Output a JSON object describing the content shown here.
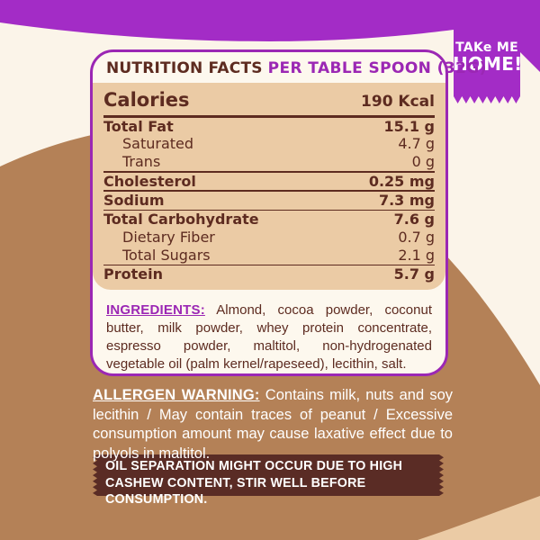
{
  "colors": {
    "background": "#FBF4E9",
    "purple": "#9B27B4",
    "purple-bright": "#A32CC6",
    "brown": "#B48157",
    "tan": "#EBCBA5",
    "dark-brown-text": "#5D2B20",
    "banner-brown": "#5A2C25",
    "panel-bg": "#FDF8EE"
  },
  "badge": {
    "line1": "TAKe ME",
    "line2": "HOME!"
  },
  "nutrition_panel": {
    "title": "NUTRITION FACTS",
    "serving": "PER TABLE SPOON (32G)",
    "calories_label": "Calories",
    "calories_value": "190 Kcal",
    "rows": [
      {
        "label": "Total Fat",
        "value": "15.1 g",
        "bold": true,
        "indent": false,
        "divider_after": false
      },
      {
        "label": "Saturated",
        "value": "4.7 g",
        "bold": false,
        "indent": true,
        "divider_after": false
      },
      {
        "label": "Trans",
        "value": "0 g",
        "bold": false,
        "indent": true,
        "divider_after": true
      },
      {
        "label": "Cholesterol",
        "value": "0.25 mg",
        "bold": true,
        "indent": false,
        "divider_after": true
      },
      {
        "label": "Sodium",
        "value": "7.3 mg",
        "bold": true,
        "indent": false,
        "divider_after": true
      },
      {
        "label": "Total Carbohydrate",
        "value": "7.6 g",
        "bold": true,
        "indent": false,
        "divider_after": false
      },
      {
        "label": "Dietary Fiber",
        "value": "0.7 g",
        "bold": false,
        "indent": true,
        "divider_after": false
      },
      {
        "label": "Total Sugars",
        "value": "2.1 g",
        "bold": false,
        "indent": true,
        "divider_after": true
      },
      {
        "label": "Protein",
        "value": "5.7 g",
        "bold": true,
        "indent": false,
        "divider_after": false
      }
    ],
    "ingredients_label": "INGREDIENTS:",
    "ingredients_text": "Almond, cocoa powder, coconut butter, milk powder, whey protein concentrate, espresso powder, maltitol, non-hydrogenated vegetable oil (palm kernel/rapeseed), lecithin, salt."
  },
  "allergen": {
    "label": "ALLERGEN WARNING:",
    "text": "Contains milk, nuts and soy lecithin / May contain traces of peanut / Excessive consumption amount may cause laxative effect due to polyols in maltitol."
  },
  "notice": {
    "text": "OIL SEPARATION MIGHT OCCUR DUE TO HIGH CASHEW CONTENT, STIR WELL BEFORE CONSUMPTION."
  }
}
